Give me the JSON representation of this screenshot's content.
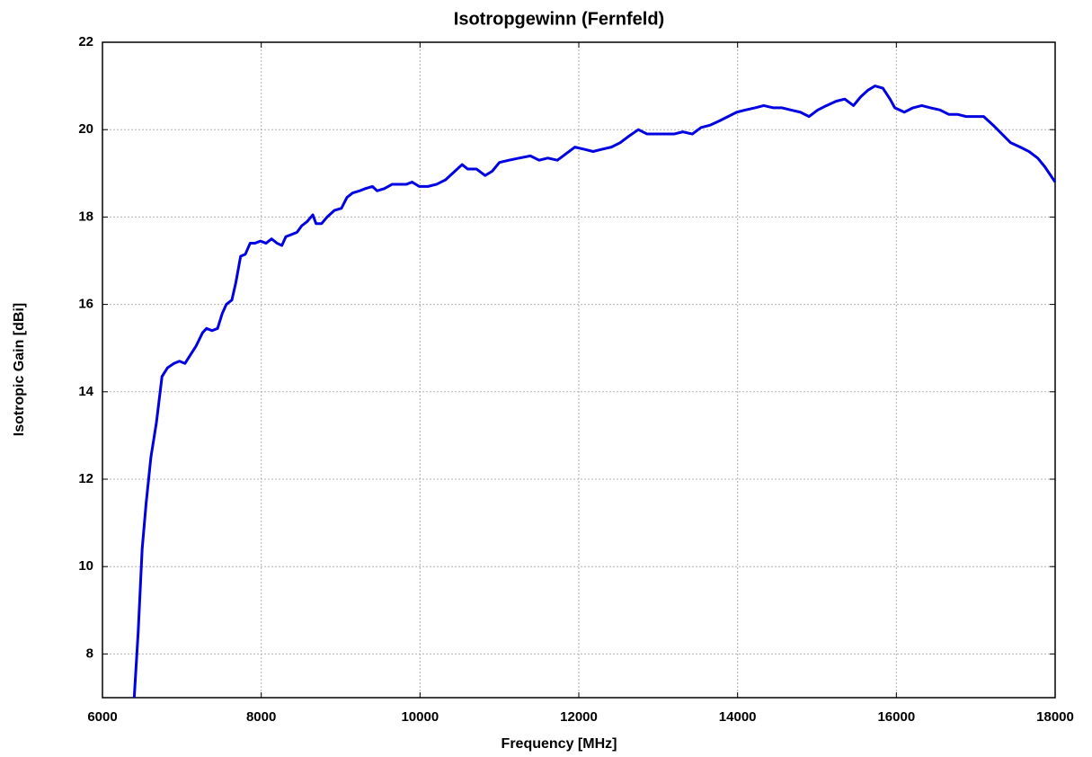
{
  "chart_data": {
    "type": "line",
    "title": "Isotropgewinn (Fernfeld)",
    "x_label": "Frequency [MHz]",
    "y_label": "Isotropic Gain [dBi]",
    "xlim": [
      6000,
      18000
    ],
    "xticks": [
      6000,
      8000,
      10000,
      12000,
      14000,
      16000,
      18000
    ],
    "ylim": [
      7,
      22
    ],
    "yticks": [
      8,
      10,
      12,
      14,
      16,
      18,
      20,
      22
    ],
    "grid": true,
    "x": [
      6400,
      6450,
      6500,
      6550,
      6610,
      6680,
      6750,
      6820,
      6900,
      6970,
      7040,
      7110,
      7180,
      7260,
      7310,
      7380,
      7450,
      7510,
      7560,
      7630,
      7680,
      7740,
      7800,
      7860,
      7920,
      7990,
      8060,
      8130,
      8200,
      8260,
      8310,
      8380,
      8450,
      8510,
      8580,
      8650,
      8690,
      8760,
      8830,
      8920,
      9010,
      9080,
      9150,
      9240,
      9310,
      9400,
      9460,
      9550,
      9650,
      9740,
      9830,
      9900,
      9990,
      10100,
      10210,
      10320,
      10440,
      10530,
      10600,
      10710,
      10820,
      10910,
      11000,
      11120,
      11250,
      11390,
      11500,
      11610,
      11730,
      11840,
      11950,
      12070,
      12180,
      12290,
      12410,
      12520,
      12630,
      12750,
      12860,
      12970,
      13090,
      13200,
      13310,
      13430,
      13540,
      13650,
      13770,
      13880,
      13990,
      14100,
      14220,
      14330,
      14450,
      14560,
      14670,
      14790,
      14900,
      15010,
      15120,
      15240,
      15350,
      15460,
      15550,
      15640,
      15730,
      15830,
      15920,
      15980,
      16100,
      16210,
      16320,
      16430,
      16550,
      16660,
      16770,
      16880,
      16990,
      17100,
      17220,
      17330,
      17440,
      17560,
      17670,
      17780,
      17870,
      18000
    ],
    "series": [
      {
        "name": "Isotropic Gain",
        "color": "#0000e0",
        "values": [
          7.0,
          8.5,
          10.4,
          11.45,
          12.5,
          13.3,
          14.35,
          14.55,
          14.65,
          14.7,
          14.65,
          14.85,
          15.05,
          15.35,
          15.45,
          15.4,
          15.45,
          15.8,
          16.0,
          16.1,
          16.5,
          17.1,
          17.15,
          17.4,
          17.4,
          17.45,
          17.4,
          17.5,
          17.4,
          17.35,
          17.55,
          17.6,
          17.65,
          17.8,
          17.9,
          18.05,
          17.85,
          17.85,
          18.0,
          18.15,
          18.2,
          18.45,
          18.55,
          18.6,
          18.65,
          18.7,
          18.6,
          18.65,
          18.75,
          18.75,
          18.75,
          18.8,
          18.7,
          18.7,
          18.75,
          18.85,
          19.05,
          19.2,
          19.1,
          19.1,
          18.95,
          19.05,
          19.25,
          19.3,
          19.35,
          19.4,
          19.3,
          19.35,
          19.3,
          19.45,
          19.6,
          19.55,
          19.5,
          19.55,
          19.6,
          19.7,
          19.85,
          20.0,
          19.9,
          19.9,
          19.9,
          19.9,
          19.95,
          19.9,
          20.05,
          20.1,
          20.2,
          20.3,
          20.4,
          20.45,
          20.5,
          20.55,
          20.5,
          20.5,
          20.45,
          20.4,
          20.3,
          20.45,
          20.55,
          20.65,
          20.7,
          20.55,
          20.75,
          20.9,
          21.0,
          20.95,
          20.7,
          20.5,
          20.4,
          20.5,
          20.55,
          20.5,
          20.45,
          20.35,
          20.35,
          20.3,
          20.3,
          20.3,
          20.1,
          19.9,
          19.7,
          19.6,
          19.5,
          19.35,
          19.15,
          18.8
        ]
      }
    ]
  }
}
